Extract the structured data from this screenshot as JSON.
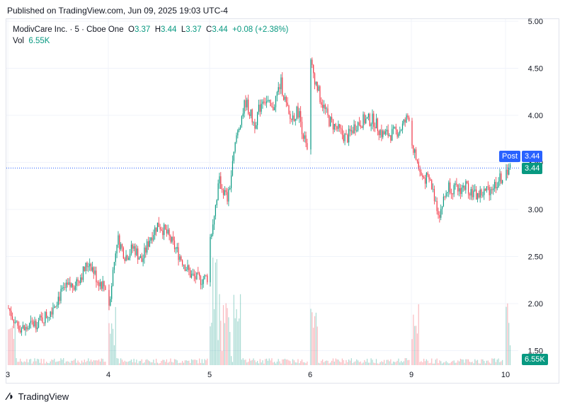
{
  "published": "Published on TradingView.com, Jun 09, 2025 19:03 UTC-4",
  "legend": {
    "symbol": "ModivCare Inc. · 5 · Cboe One",
    "o_label": "O",
    "o": "3.37",
    "h_label": "H",
    "h": "3.44",
    "l_label": "L",
    "l": "3.37",
    "c_label": "C",
    "c": "3.44",
    "change": "+0.08 (+2.38%)",
    "vol_label": "Vol",
    "vol": "6.55K"
  },
  "tags": {
    "post_label": "Post",
    "post_price": "3.44",
    "last_price": "3.44",
    "volume": "6.55K"
  },
  "brand": "TradingView",
  "colors": {
    "up": "#089981",
    "down": "#f23645",
    "post": "#2962ff",
    "grid": "#f0f3fa"
  },
  "chart_data": {
    "type": "candlestick",
    "y_ticks": [
      "5.00",
      "4.50",
      "4.00",
      "3.50",
      "3.00",
      "2.50",
      "2.00",
      "1.50"
    ],
    "y_tick_values": [
      5.0,
      4.5,
      4.0,
      3.5,
      3.0,
      2.5,
      2.0,
      1.5
    ],
    "ylim": [
      1.4,
      5.05
    ],
    "x_ticks": [
      "3",
      "4",
      "5",
      "6",
      "9",
      "10"
    ],
    "current_price": 3.44,
    "close_path": [
      [
        "3",
        1.95
      ],
      [
        "3",
        1.78
      ],
      [
        "3",
        1.72
      ],
      [
        "3",
        1.78
      ],
      [
        "3",
        1.82
      ],
      [
        "3",
        1.9
      ],
      [
        "3",
        2.05
      ],
      [
        "3",
        2.15
      ],
      [
        "3",
        2.2
      ],
      [
        "3",
        2.3
      ],
      [
        "3",
        2.45
      ],
      [
        "3",
        2.25
      ],
      [
        "3",
        2.18
      ],
      [
        "4",
        2.0
      ],
      [
        "4",
        2.7
      ],
      [
        "4",
        2.5
      ],
      [
        "4",
        2.6
      ],
      [
        "4",
        2.45
      ],
      [
        "4",
        2.7
      ],
      [
        "4",
        2.85
      ],
      [
        "4",
        2.75
      ],
      [
        "4",
        2.6
      ],
      [
        "4",
        2.45
      ],
      [
        "4",
        2.3
      ],
      [
        "4",
        2.25
      ],
      [
        "4",
        2.28
      ],
      [
        "5",
        2.7
      ],
      [
        "5",
        3.3
      ],
      [
        "5",
        3.1
      ],
      [
        "5",
        3.8
      ],
      [
        "5",
        4.15
      ],
      [
        "5",
        3.9
      ],
      [
        "5",
        4.2
      ],
      [
        "5",
        4.05
      ],
      [
        "5",
        4.35
      ],
      [
        "5",
        3.95
      ],
      [
        "5",
        4.05
      ],
      [
        "5",
        3.6
      ],
      [
        "6",
        4.55
      ],
      [
        "6",
        4.2
      ],
      [
        "6",
        3.95
      ],
      [
        "6",
        3.85
      ],
      [
        "6",
        3.75
      ],
      [
        "6",
        3.9
      ],
      [
        "6",
        3.95
      ],
      [
        "6",
        3.95
      ],
      [
        "6",
        3.8
      ],
      [
        "6",
        3.8
      ],
      [
        "6",
        3.85
      ],
      [
        "6",
        4.0
      ],
      [
        "9",
        3.7
      ],
      [
        "9",
        3.35
      ],
      [
        "9",
        3.3
      ],
      [
        "9",
        2.95
      ],
      [
        "9",
        3.25
      ],
      [
        "9",
        3.2
      ],
      [
        "9",
        3.25
      ],
      [
        "9",
        3.15
      ],
      [
        "9",
        3.18
      ],
      [
        "9",
        3.25
      ],
      [
        "9",
        3.35
      ],
      [
        "10",
        3.44
      ]
    ]
  }
}
